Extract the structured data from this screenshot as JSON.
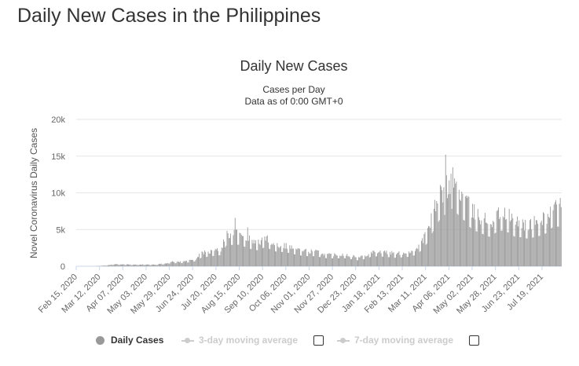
{
  "page": {
    "title": "Daily New Cases in the Philippines"
  },
  "chart_data": {
    "type": "bar",
    "title": "Daily New Cases",
    "subtitle_lines": [
      "Cases per Day",
      "Data as of 0:00 GMT+0"
    ],
    "ylabel": "Novel Coronavirus Daily Cases",
    "xlabel": "",
    "ylim": [
      0,
      20000
    ],
    "y_ticks": [
      0,
      5000,
      10000,
      15000,
      20000
    ],
    "y_tick_labels": [
      "0",
      "5k",
      "10k",
      "15k",
      "20k"
    ],
    "x_start": "Feb 15, 2020",
    "x_end": "Aug 09, 2021",
    "x_tick_labels": [
      "Feb 15, 2020",
      "Mar 12, 2020",
      "Apr 07, 2020",
      "May 03, 2020",
      "May 29, 2020",
      "Jun 24, 2020",
      "Jul 20, 2020",
      "Aug 15, 2020",
      "Sep 10, 2020",
      "Oct 06, 2020",
      "Nov 01, 2020",
      "Nov 27, 2020",
      "Dec 23, 2020",
      "Jan 18, 2021",
      "Feb 13, 2021",
      "Mar 11, 2021",
      "Apr 06, 2021",
      "May 02, 2021",
      "May 28, 2021",
      "Jun 23, 2021",
      "Jul 19, 2021"
    ],
    "grid": true,
    "legend_position": "bottom-center",
    "bar_color": "#999999",
    "weekly_values": [
      {
        "week_of": "Feb 15, 2020",
        "value": 0
      },
      {
        "week_of": "Feb 22, 2020",
        "value": 0
      },
      {
        "week_of": "Feb 29, 2020",
        "value": 0
      },
      {
        "week_of": "Mar 07, 2020",
        "value": 10
      },
      {
        "week_of": "Mar 14, 2020",
        "value": 60
      },
      {
        "week_of": "Mar 21, 2020",
        "value": 120
      },
      {
        "week_of": "Mar 28, 2020",
        "value": 280
      },
      {
        "week_of": "Apr 04, 2020",
        "value": 250
      },
      {
        "week_of": "Apr 11, 2020",
        "value": 230
      },
      {
        "week_of": "Apr 18, 2020",
        "value": 200
      },
      {
        "week_of": "Apr 25, 2020",
        "value": 230
      },
      {
        "week_of": "May 02, 2020",
        "value": 230
      },
      {
        "week_of": "May 09, 2020",
        "value": 200
      },
      {
        "week_of": "May 16, 2020",
        "value": 250
      },
      {
        "week_of": "May 23, 2020",
        "value": 350
      },
      {
        "week_of": "May 30, 2020",
        "value": 550
      },
      {
        "week_of": "Jun 06, 2020",
        "value": 580
      },
      {
        "week_of": "Jun 13, 2020",
        "value": 600
      },
      {
        "week_of": "Jun 20, 2020",
        "value": 750
      },
      {
        "week_of": "Jun 27, 2020",
        "value": 950
      },
      {
        "week_of": "Jul 04, 2020",
        "value": 1700
      },
      {
        "week_of": "Jul 11, 2020",
        "value": 1800
      },
      {
        "week_of": "Jul 18, 2020",
        "value": 2000
      },
      {
        "week_of": "Jul 25, 2020",
        "value": 2100
      },
      {
        "week_of": "Aug 01, 2020",
        "value": 4200
      },
      {
        "week_of": "Aug 08, 2020",
        "value": 4000
      },
      {
        "week_of": "Aug 15, 2020",
        "value": 4100
      },
      {
        "week_of": "Aug 22, 2020",
        "value": 3600
      },
      {
        "week_of": "Aug 29, 2020",
        "value": 3200
      },
      {
        "week_of": "Sep 05, 2020",
        "value": 3000
      },
      {
        "week_of": "Sep 12, 2020",
        "value": 3600
      },
      {
        "week_of": "Sep 19, 2020",
        "value": 3200
      },
      {
        "week_of": "Sep 26, 2020",
        "value": 2700
      },
      {
        "week_of": "Oct 03, 2020",
        "value": 2700
      },
      {
        "week_of": "Oct 10, 2020",
        "value": 2500
      },
      {
        "week_of": "Oct 17, 2020",
        "value": 2200
      },
      {
        "week_of": "Oct 24, 2020",
        "value": 2000
      },
      {
        "week_of": "Oct 31, 2020",
        "value": 1900
      },
      {
        "week_of": "Nov 07, 2020",
        "value": 1900
      },
      {
        "week_of": "Nov 14, 2020",
        "value": 1700
      },
      {
        "week_of": "Nov 21, 2020",
        "value": 1500
      },
      {
        "week_of": "Nov 28, 2020",
        "value": 1500
      },
      {
        "week_of": "Dec 05, 2020",
        "value": 1500
      },
      {
        "week_of": "Dec 12, 2020",
        "value": 1500
      },
      {
        "week_of": "Dec 19, 2020",
        "value": 1300
      },
      {
        "week_of": "Dec 26, 2020",
        "value": 1100
      },
      {
        "week_of": "Jan 02, 2021",
        "value": 1400
      },
      {
        "week_of": "Jan 09, 2021",
        "value": 1800
      },
      {
        "week_of": "Jan 16, 2021",
        "value": 1900
      },
      {
        "week_of": "Jan 23, 2021",
        "value": 1800
      },
      {
        "week_of": "Jan 30, 2021",
        "value": 1700
      },
      {
        "week_of": "Feb 06, 2021",
        "value": 1600
      },
      {
        "week_of": "Feb 13, 2021",
        "value": 1700
      },
      {
        "week_of": "Feb 20, 2021",
        "value": 1800
      },
      {
        "week_of": "Feb 27, 2021",
        "value": 2100
      },
      {
        "week_of": "Mar 06, 2021",
        "value": 3000
      },
      {
        "week_of": "Mar 13, 2021",
        "value": 4500
      },
      {
        "week_of": "Mar 20, 2021",
        "value": 7000
      },
      {
        "week_of": "Mar 27, 2021",
        "value": 9000
      },
      {
        "week_of": "Apr 03, 2021",
        "value": 10000
      },
      {
        "week_of": "Apr 10, 2021",
        "value": 11000
      },
      {
        "week_of": "Apr 17, 2021",
        "value": 9500
      },
      {
        "week_of": "Apr 24, 2021",
        "value": 8500
      },
      {
        "week_of": "May 01, 2021",
        "value": 7000
      },
      {
        "week_of": "May 08, 2021",
        "value": 6500
      },
      {
        "week_of": "May 15, 2021",
        "value": 6000
      },
      {
        "week_of": "May 22, 2021",
        "value": 5500
      },
      {
        "week_of": "May 29, 2021",
        "value": 6500
      },
      {
        "week_of": "Jun 05, 2021",
        "value": 6800
      },
      {
        "week_of": "Jun 12, 2021",
        "value": 6300
      },
      {
        "week_of": "Jun 19, 2021",
        "value": 5500
      },
      {
        "week_of": "Jun 26, 2021",
        "value": 5500
      },
      {
        "week_of": "Jul 03, 2021",
        "value": 5200
      },
      {
        "week_of": "Jul 10, 2021",
        "value": 5500
      },
      {
        "week_of": "Jul 17, 2021",
        "value": 5800
      },
      {
        "week_of": "Jul 24, 2021",
        "value": 6300
      },
      {
        "week_of": "Jul 31, 2021",
        "value": 7500
      }
    ],
    "peaks": [
      {
        "date": "Aug 10, 2020",
        "value": 6600
      },
      {
        "date": "Aug 24, 2020",
        "value": 5300
      },
      {
        "date": "Apr 02, 2021",
        "value": 15200
      },
      {
        "date": "Apr 08, 2021",
        "value": 12600
      },
      {
        "date": "Aug 07, 2021",
        "value": 8500
      }
    ]
  },
  "legend": {
    "items": [
      {
        "label": "Daily Cases",
        "color": "#999999",
        "active": true
      },
      {
        "label": "3-day moving average",
        "color": "#cccccc",
        "active": false
      },
      {
        "label": "7-day moving average",
        "color": "#cccccc",
        "active": false
      }
    ]
  }
}
